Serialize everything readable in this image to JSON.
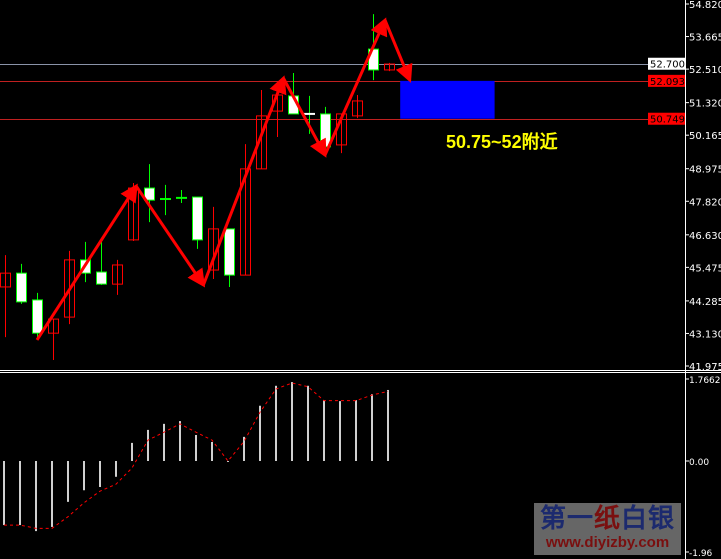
{
  "chart_data": {
    "type": "candlestick",
    "colors": {
      "background": "#000000",
      "bull_body": "#ffffff",
      "bull_outline": "#00ff00",
      "bear_outline": "#ff0000",
      "zigzag": "#ff0000",
      "zone": "#0000ff",
      "annotation": "#ffff00",
      "histogram": "#d0d0d0",
      "signal": "#ff0000"
    },
    "price_axis": {
      "ylim": [
        41.975,
        54.82
      ],
      "tick_labels": [
        "54.820",
        "53.665",
        "52.510",
        "51.320",
        "50.165",
        "48.975",
        "47.820",
        "46.630",
        "45.475",
        "44.285",
        "43.130",
        "41.975"
      ],
      "markers": [
        {
          "label": "52.700",
          "value": 52.7,
          "style": "white"
        },
        {
          "label": "52.093",
          "value": 52.093,
          "style": "red"
        },
        {
          "label": "50.749",
          "value": 50.749,
          "style": "red"
        }
      ]
    },
    "candles": [
      {
        "o": 45.27,
        "h": 45.91,
        "l": 43.0,
        "c": 44.78
      },
      {
        "o": 44.25,
        "h": 45.6,
        "l": 44.18,
        "c": 45.27
      },
      {
        "o": 43.14,
        "h": 44.57,
        "l": 42.97,
        "c": 44.32
      },
      {
        "o": 43.64,
        "h": 43.64,
        "l": 42.19,
        "c": 43.14
      },
      {
        "o": 45.74,
        "h": 46.06,
        "l": 43.46,
        "c": 43.71
      },
      {
        "o": 45.27,
        "h": 46.38,
        "l": 44.95,
        "c": 45.74
      },
      {
        "o": 44.88,
        "h": 46.52,
        "l": 44.85,
        "c": 45.31
      },
      {
        "o": 45.56,
        "h": 45.74,
        "l": 44.5,
        "c": 44.88
      },
      {
        "o": 48.29,
        "h": 48.47,
        "l": 46.41,
        "c": 46.45
      },
      {
        "o": 47.86,
        "h": 49.14,
        "l": 47.08,
        "c": 48.29
      },
      {
        "o": 47.9,
        "h": 48.4,
        "l": 47.33,
        "c": 47.9
      },
      {
        "o": 47.94,
        "h": 48.22,
        "l": 47.76,
        "c": 47.94
      },
      {
        "o": 46.45,
        "h": 47.97,
        "l": 46.13,
        "c": 47.97
      },
      {
        "o": 46.84,
        "h": 47.62,
        "l": 45.06,
        "c": 45.38
      },
      {
        "o": 45.2,
        "h": 46.84,
        "l": 44.78,
        "c": 46.84
      },
      {
        "o": 48.97,
        "h": 49.85,
        "l": 45.2,
        "c": 45.2
      },
      {
        "o": 50.85,
        "h": 51.77,
        "l": 48.97,
        "c": 48.97
      },
      {
        "o": 51.59,
        "h": 51.7,
        "l": 50.1,
        "c": 51.02
      },
      {
        "o": 50.92,
        "h": 52.37,
        "l": 50.92,
        "c": 51.56
      },
      {
        "o": 50.92,
        "h": 51.56,
        "l": 50.21,
        "c": 50.92
      },
      {
        "o": 49.75,
        "h": 51.17,
        "l": 49.75,
        "c": 50.92
      },
      {
        "o": 50.92,
        "h": 50.92,
        "l": 49.53,
        "c": 49.82
      },
      {
        "o": 51.38,
        "h": 51.59,
        "l": 50.77,
        "c": 50.85
      },
      {
        "o": 52.48,
        "h": 54.46,
        "l": 52.12,
        "c": 53.22
      },
      {
        "o": 52.69,
        "h": 52.73,
        "l": 52.44,
        "c": 52.48
      }
    ],
    "zigzag": [
      {
        "i": 3.0,
        "p": 42.9
      },
      {
        "i": 9.2,
        "p": 48.36
      },
      {
        "i": 13.4,
        "p": 44.85
      },
      {
        "i": 18.4,
        "p": 52.19
      },
      {
        "i": 21.0,
        "p": 49.46
      },
      {
        "i": 24.75,
        "p": 54.25
      },
      {
        "i": 26.3,
        "p": 52.12
      }
    ],
    "zone": {
      "from_index": 25.7,
      "to_index": 31.6,
      "low": 50.749,
      "high": 52.093
    },
    "annotation": "50.75~52附近",
    "indicator": {
      "ylim": [
        -1.96,
        1.7662
      ],
      "tick_labels": [
        "1.7662",
        "0.00",
        "-1.96"
      ],
      "histogram": [
        -1.38,
        -1.38,
        -1.51,
        -1.42,
        -0.88,
        -0.63,
        -0.56,
        -0.34,
        0.39,
        0.67,
        0.8,
        0.86,
        0.56,
        0.41,
        -0.02,
        0.52,
        1.19,
        1.62,
        1.7,
        1.62,
        1.31,
        1.29,
        1.31,
        1.44,
        1.53
      ],
      "signal": [
        -1.38,
        -1.38,
        -1.45,
        -1.45,
        -1.2,
        -0.9,
        -0.65,
        -0.5,
        -0.15,
        0.45,
        0.62,
        0.8,
        0.62,
        0.45,
        0.0,
        0.42,
        1.05,
        1.55,
        1.68,
        1.6,
        1.3,
        1.3,
        1.3,
        1.42,
        1.5
      ]
    }
  },
  "watermark": {
    "line1_a": "第一",
    "line1_b": "纸",
    "line1_c": "白银",
    "line2": "www.diyizby.com"
  }
}
